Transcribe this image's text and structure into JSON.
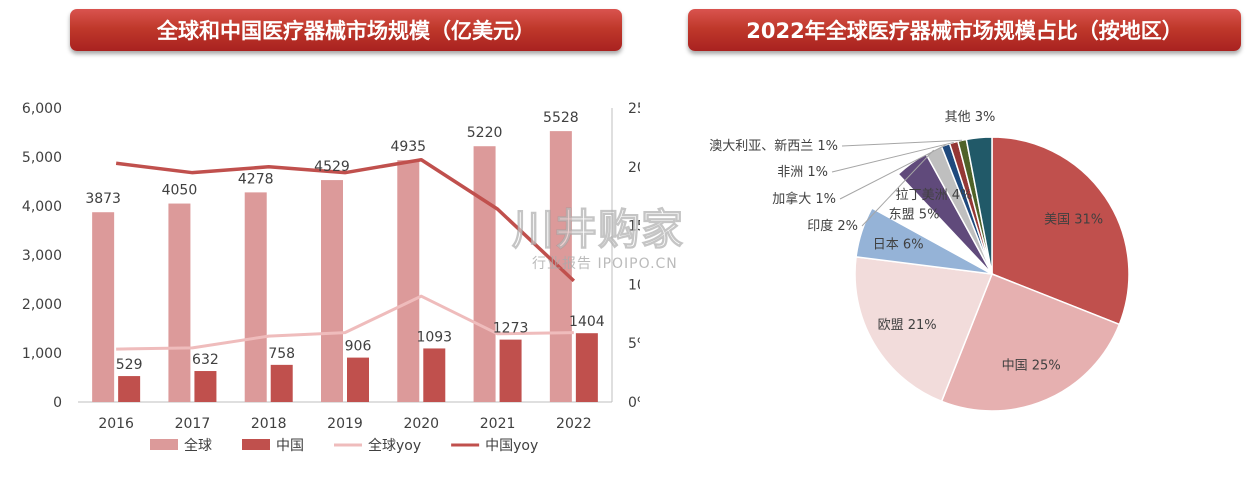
{
  "titles": {
    "left": "全球和中国医疗器械市场规模（亿美元）",
    "right": "2022年全球医疗器械市场规模占比（按地区）"
  },
  "watermark": {
    "main": "川井购家",
    "sub": "行业报告 IPOIPO.CN"
  },
  "colors": {
    "global_bar": "#dc9a9a",
    "china_bar": "#c0504d",
    "global_yoy": "#efbcbc",
    "china_yoy": "#c0504d"
  },
  "chart_data": [
    {
      "type": "bar",
      "categories": [
        "2016",
        "2017",
        "2018",
        "2019",
        "2020",
        "2021",
        "2022"
      ],
      "series": [
        {
          "name": "全球",
          "kind": "bar",
          "axis": "left",
          "values": [
            3873,
            4050,
            4278,
            4529,
            4935,
            5220,
            5528
          ],
          "labels": [
            "3873",
            "4050",
            "4278",
            "4529",
            "4935",
            "5220",
            "5528"
          ]
        },
        {
          "name": "中国",
          "kind": "bar",
          "axis": "left",
          "values": [
            529,
            632,
            758,
            906,
            1093,
            1273,
            1404
          ],
          "labels": [
            "529",
            "632",
            "758",
            "906",
            "1093",
            "1273",
            "1404"
          ]
        },
        {
          "name": "全球yoy",
          "kind": "line",
          "axis": "right",
          "values": [
            4.5,
            4.6,
            5.6,
            5.9,
            9.0,
            5.8,
            5.9
          ]
        },
        {
          "name": "中国yoy",
          "kind": "line",
          "axis": "right",
          "values": [
            20.3,
            19.5,
            20.0,
            19.5,
            20.6,
            16.4,
            10.3
          ]
        }
      ],
      "y_left": {
        "min": 0,
        "max": 6000,
        "ticks": [
          "0",
          "1,000",
          "2,000",
          "3,000",
          "4,000",
          "5,000",
          "6,000"
        ]
      },
      "y_right": {
        "min": 0,
        "max": 25,
        "ticks": [
          "0%",
          "5%",
          "10%",
          "15%",
          "20%",
          "25%"
        ]
      },
      "grid": false,
      "legend_position": "bottom"
    },
    {
      "type": "pie",
      "slices": [
        {
          "label": "美国 31%",
          "value": 31,
          "color": "#c0504d"
        },
        {
          "label": "中国 25%",
          "value": 25,
          "color": "#e6b0b0"
        },
        {
          "label": "欧盟 21%",
          "value": 21,
          "color": "#f2dcdb"
        },
        {
          "label": "日本 6%",
          "value": 6,
          "color": "#95b3d7"
        },
        {
          "label": "东盟 5%",
          "value": 5,
          "color": "#ffffff"
        },
        {
          "label": "拉丁美洲 4%",
          "value": 4,
          "color": "#604a7b"
        },
        {
          "label": "印度 2%",
          "value": 2,
          "color": "#bfbfbf"
        },
        {
          "label": "加拿大 1%",
          "value": 1,
          "color": "#1f497d"
        },
        {
          "label": "非洲 1%",
          "value": 1,
          "color": "#953735"
        },
        {
          "label": "澳大利亚、新西兰 1%",
          "value": 1,
          "color": "#4f6228"
        },
        {
          "label": "其他 3%",
          "value": 3,
          "color": "#215968"
        }
      ]
    }
  ]
}
